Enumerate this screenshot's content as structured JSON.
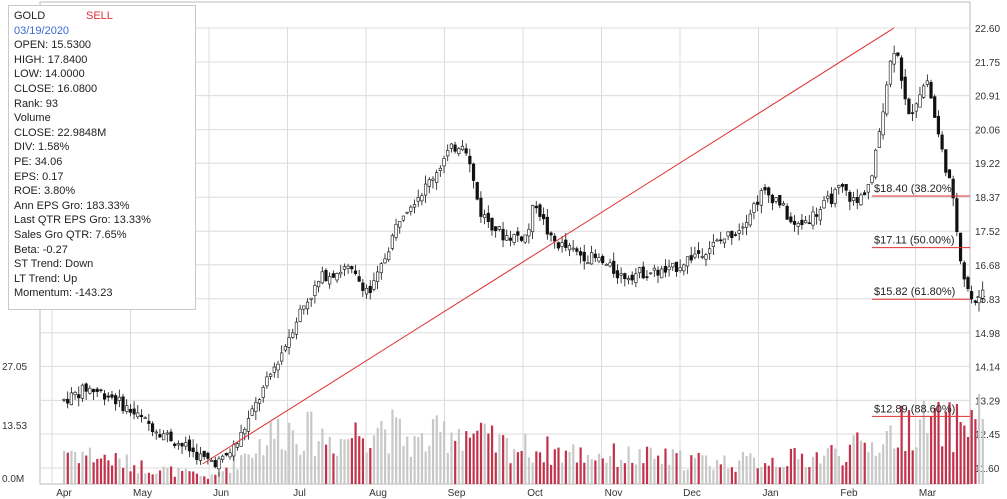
{
  "header": {
    "symbol": "GOLD",
    "signal": "SELL",
    "date": "03/19/2020"
  },
  "stats": [
    "OPEN: 15.5300",
    "HIGH: 17.8400",
    "LOW: 14.0000",
    "CLOSE: 16.0800",
    "Rank: 93",
    "Volume",
    "CLOSE: 22.9848M",
    "DIV: 1.58%",
    "PE: 34.06",
    "EPS: 0.17",
    "ROE: 3.80%",
    "Ann EPS Gro: 183.33%",
    "Last QTR EPS Gro: 13.33%",
    "Sales Gro QTR: 7.65%",
    "Beta: -0.27",
    "ST Trend: Down",
    "LT Trend: Up",
    "Momentum: -143.23"
  ],
  "colors": {
    "up_volume": "#c8c8c8",
    "down_volume": "#c2324a",
    "trendline": "#e03030",
    "fib_line": "#e03030",
    "grid": "#dcdcdc",
    "candle": "#111111"
  },
  "chart_data": {
    "type": "candlestick",
    "price_axis": {
      "ticks": [
        "22.60",
        "21.75",
        "20.91",
        "20.06",
        "19.22",
        "18.37",
        "17.52",
        "16.68",
        "15.83",
        "14.98",
        "14.14",
        "13.29",
        "12.45",
        "11.60"
      ],
      "ylim": [
        11.6,
        22.6
      ]
    },
    "volume_axis": {
      "ticks": [
        "27.05",
        "13.53",
        "0.0M"
      ],
      "ylim": [
        0,
        27.05
      ]
    },
    "x_axis": {
      "labels": [
        "Apr",
        "May",
        "Jun",
        "Jul",
        "Aug",
        "Sep",
        "Oct",
        "Nov",
        "Dec",
        "Jan",
        "Feb",
        "Mar"
      ]
    },
    "fibonacci": [
      {
        "label": "$18.40 (38.20%)",
        "value": 18.4
      },
      {
        "label": "$17.11 (50.00%)",
        "value": 17.11
      },
      {
        "label": "$15.82 (61.80%)",
        "value": 15.82
      },
      {
        "label": "$12.89 (88.60%)",
        "value": 12.89
      }
    ],
    "trendline": {
      "from": [
        "May",
        11.7
      ],
      "to": [
        "Feb",
        22.6
      ]
    },
    "price_path": [
      {
        "m": 0.0,
        "p": 13.3
      },
      {
        "m": 0.3,
        "p": 13.6
      },
      {
        "m": 0.6,
        "p": 13.4
      },
      {
        "m": 1.0,
        "p": 12.8
      },
      {
        "m": 1.4,
        "p": 12.3
      },
      {
        "m": 1.8,
        "p": 11.8
      },
      {
        "m": 2.0,
        "p": 11.75
      },
      {
        "m": 2.2,
        "p": 12.2
      },
      {
        "m": 2.5,
        "p": 13.4
      },
      {
        "m": 2.8,
        "p": 14.6
      },
      {
        "m": 3.0,
        "p": 15.5
      },
      {
        "m": 3.3,
        "p": 16.4
      },
      {
        "m": 3.6,
        "p": 16.6
      },
      {
        "m": 3.9,
        "p": 16.0
      },
      {
        "m": 4.0,
        "p": 16.4
      },
      {
        "m": 4.3,
        "p": 18.0
      },
      {
        "m": 4.6,
        "p": 18.6
      },
      {
        "m": 4.9,
        "p": 19.5
      },
      {
        "m": 5.1,
        "p": 19.8
      },
      {
        "m": 5.3,
        "p": 18.0
      },
      {
        "m": 5.6,
        "p": 17.4
      },
      {
        "m": 5.9,
        "p": 17.4
      },
      {
        "m": 6.0,
        "p": 18.3
      },
      {
        "m": 6.2,
        "p": 17.3
      },
      {
        "m": 6.5,
        "p": 17.0
      },
      {
        "m": 6.8,
        "p": 16.8
      },
      {
        "m": 7.1,
        "p": 16.4
      },
      {
        "m": 7.4,
        "p": 16.5
      },
      {
        "m": 7.7,
        "p": 16.5
      },
      {
        "m": 8.0,
        "p": 16.9
      },
      {
        "m": 8.3,
        "p": 17.2
      },
      {
        "m": 8.6,
        "p": 17.6
      },
      {
        "m": 8.9,
        "p": 18.5
      },
      {
        "m": 9.1,
        "p": 18.3
      },
      {
        "m": 9.3,
        "p": 17.6
      },
      {
        "m": 9.6,
        "p": 18.0
      },
      {
        "m": 9.9,
        "p": 18.6
      },
      {
        "m": 10.1,
        "p": 18.2
      },
      {
        "m": 10.3,
        "p": 18.9
      },
      {
        "m": 10.5,
        "p": 21.5
      },
      {
        "m": 10.6,
        "p": 22.3
      },
      {
        "m": 10.75,
        "p": 20.3
      },
      {
        "m": 10.9,
        "p": 21.0
      },
      {
        "m": 11.0,
        "p": 21.3
      },
      {
        "m": 11.15,
        "p": 19.8
      },
      {
        "m": 11.3,
        "p": 18.6
      },
      {
        "m": 11.45,
        "p": 16.5
      },
      {
        "m": 11.6,
        "p": 15.6
      },
      {
        "m": 11.75,
        "p": 16.4
      }
    ],
    "volume_path": [
      {
        "m": 0.0,
        "v": 8
      },
      {
        "m": 1.0,
        "v": 4
      },
      {
        "m": 1.9,
        "v": 1.5
      },
      {
        "m": 2.3,
        "v": 7
      },
      {
        "m": 2.8,
        "v": 13
      },
      {
        "m": 3.5,
        "v": 10
      },
      {
        "m": 4.0,
        "v": 14
      },
      {
        "m": 4.5,
        "v": 9
      },
      {
        "m": 5.0,
        "v": 13
      },
      {
        "m": 5.5,
        "v": 9
      },
      {
        "m": 6.5,
        "v": 7
      },
      {
        "m": 7.5,
        "v": 6
      },
      {
        "m": 8.5,
        "v": 5
      },
      {
        "m": 9.5,
        "v": 6
      },
      {
        "m": 10.3,
        "v": 9
      },
      {
        "m": 10.8,
        "v": 14
      },
      {
        "m": 11.3,
        "v": 13
      },
      {
        "m": 11.75,
        "v": 17
      }
    ]
  }
}
